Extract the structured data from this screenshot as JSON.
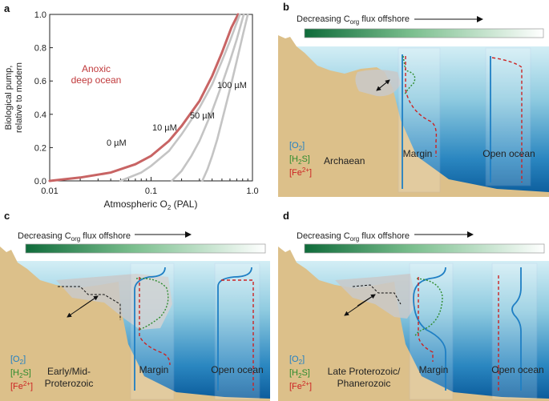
{
  "panel_a": {
    "label": "a",
    "xlabel": "Atmospheric O",
    "xlabel_sub": "2",
    "xlabel_suffix": " (PAL)",
    "ylabel_line1": "Biological pump,",
    "ylabel_line2": "relative to modern",
    "anoxic_line1": "Anoxic",
    "anoxic_line2": "deep ocean",
    "x_tick_labels": [
      "0.01",
      "0.1",
      "1.0"
    ],
    "y_tick_labels": [
      "0.0",
      "0.2",
      "0.4",
      "0.6",
      "0.8",
      "1.0"
    ],
    "curve_labels": [
      "0 µM",
      "10 µM",
      "50 µM",
      "100 µM"
    ]
  },
  "chart_data": {
    "type": "line",
    "xscale": "log",
    "xlim": [
      0.01,
      1.0
    ],
    "ylim": [
      0.0,
      1.0
    ],
    "xlabel": "Atmospheric O2 (PAL)",
    "ylabel": "Biological pump, relative to modern",
    "series": [
      {
        "name": "0 µM",
        "color": "#c86464",
        "x": [
          0.01,
          0.02,
          0.04,
          0.07,
          0.1,
          0.15,
          0.2,
          0.3,
          0.4,
          0.5,
          0.62,
          0.72
        ],
        "y": [
          0.0,
          0.02,
          0.05,
          0.1,
          0.15,
          0.24,
          0.33,
          0.48,
          0.63,
          0.77,
          0.92,
          1.0
        ]
      },
      {
        "name": "10 µM",
        "color": "#c4c4c4",
        "x": [
          0.05,
          0.08,
          0.1,
          0.15,
          0.2,
          0.3,
          0.4,
          0.5,
          0.6,
          0.75
        ],
        "y": [
          0.0,
          0.05,
          0.09,
          0.18,
          0.28,
          0.44,
          0.58,
          0.72,
          0.84,
          1.0
        ]
      },
      {
        "name": "50 µM",
        "color": "#c4c4c4",
        "x": [
          0.16,
          0.2,
          0.25,
          0.3,
          0.4,
          0.5,
          0.6,
          0.7,
          0.82
        ],
        "y": [
          0.0,
          0.06,
          0.15,
          0.24,
          0.42,
          0.58,
          0.72,
          0.85,
          1.0
        ]
      },
      {
        "name": "100 µM",
        "color": "#c4c4c4",
        "x": [
          0.32,
          0.36,
          0.4,
          0.45,
          0.5,
          0.6,
          0.7,
          0.8,
          0.9
        ],
        "y": [
          0.0,
          0.07,
          0.15,
          0.25,
          0.36,
          0.55,
          0.72,
          0.87,
          1.0
        ]
      }
    ]
  },
  "panels": {
    "b": {
      "label": "b",
      "flux_prefix": "Decreasing C",
      "flux_sub": "org",
      "flux_suffix": " flux offshore",
      "era": "Archaean",
      "margin": "Margin",
      "open": "Open ocean"
    },
    "c": {
      "label": "c",
      "flux_prefix": "Decreasing C",
      "flux_sub": "org",
      "flux_suffix": " flux offshore",
      "era_line1": "Early/Mid-",
      "era_line2": "Proterozoic",
      "margin": "Margin",
      "open": "Open ocean"
    },
    "d": {
      "label": "d",
      "flux_prefix": "Decreasing C",
      "flux_sub": "org",
      "flux_suffix": " flux offshore",
      "era_line1": "Late Proterozoic/",
      "era_line2": "Phanerozoic",
      "margin": "Margin",
      "open": "Open ocean"
    }
  },
  "legend": {
    "o2": "[O",
    "o2_sub": "2",
    "o2_end": "]",
    "h2s": "[H",
    "h2s_sub": "2",
    "h2s_end": "S]",
    "fe": "[Fe",
    "fe_sup": "2+",
    "fe_end": "]"
  },
  "colors": {
    "o2": "#1f7fc4",
    "h2s": "#2e8b2e",
    "fe": "#cc2222",
    "anoxic": "#c0393b",
    "sand": "#dcc08a",
    "gradient_dark": "#0f6b3a"
  }
}
